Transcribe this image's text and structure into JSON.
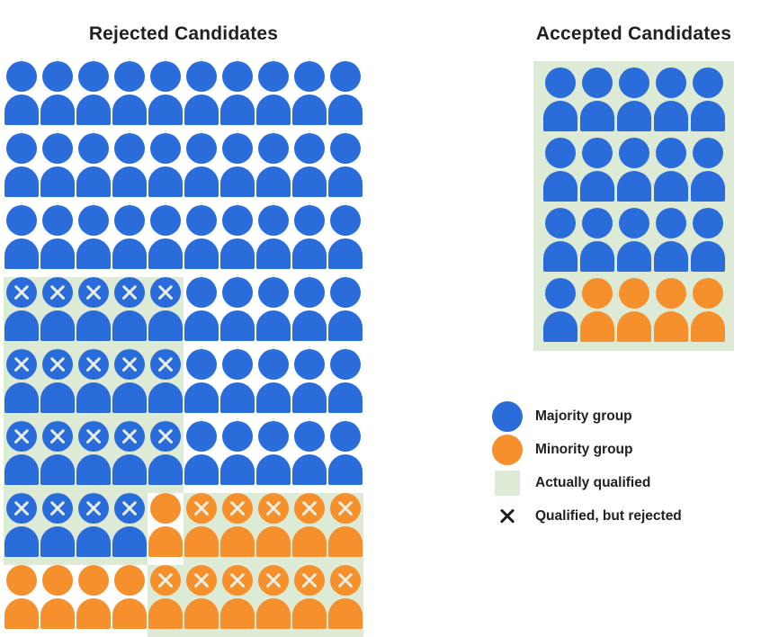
{
  "titles": {
    "rejected": "Rejected Candidates",
    "accepted": "Accepted Candidates"
  },
  "colors": {
    "majority": "#2b6cdb",
    "minority": "#f5902d",
    "qualified_bg": "#ddebd6",
    "x_mark_on_figure": "#e9efe3",
    "x_mark_legend": "#1f1f1f"
  },
  "rejected_grid": {
    "encoding": {
      "b": "majority person",
      "o": "minority person",
      "B": "majority person, qualified, rejected (X on green)",
      "O": "minority person, qualified, rejected (X on green)"
    },
    "rows": [
      "bbbbbbbbbb",
      "bbbbbbbbbb",
      "bbbbbbbbbb",
      "BBBBBbbbbb",
      "BBBBBbbbbb",
      "BBBBBbbbbb",
      "BBBBoOOOOO",
      "ooooOOOOOO"
    ]
  },
  "accepted_grid": {
    "all_on_qualified_background": true,
    "rows": [
      "bbbbb",
      "bbbbb",
      "bbbbb",
      "boooo"
    ]
  },
  "legend": {
    "items": [
      {
        "icon": "majority-circle",
        "label": "Majority group"
      },
      {
        "icon": "minority-circle",
        "label": "Minority group"
      },
      {
        "icon": "qualified-square",
        "label": "Actually qualified"
      },
      {
        "icon": "x-mark",
        "label": "Qualified, but rejected"
      }
    ]
  }
}
